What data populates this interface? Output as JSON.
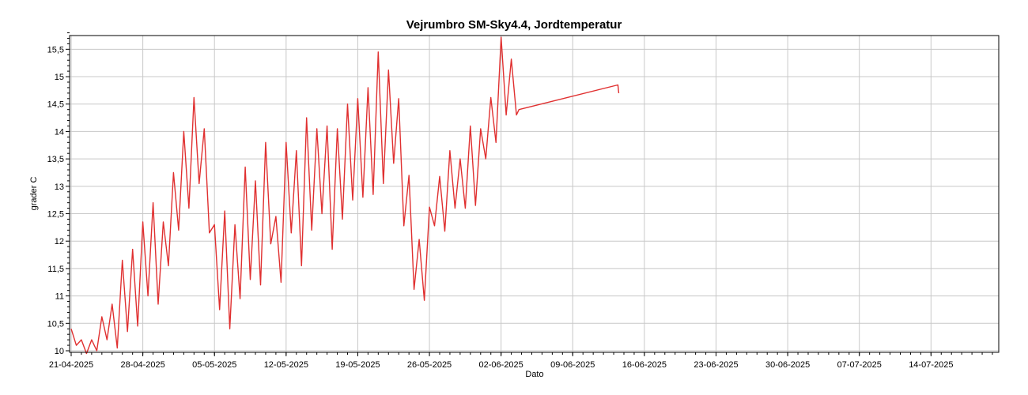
{
  "chart_data": {
    "type": "line",
    "title": "Vejrumbro SM-Sky4.4, Jordtemperatur",
    "xlabel": "Dato",
    "ylabel": "grader C",
    "x_tick_labels": [
      "21-04-2025",
      "28-04-2025",
      "05-05-2025",
      "12-05-2025",
      "19-05-2025",
      "26-05-2025",
      "02-06-2025",
      "09-06-2025",
      "16-06-2025",
      "23-06-2025",
      "30-06-2025",
      "07-07-2025",
      "14-07-2025"
    ],
    "y_tick_labels": [
      "10",
      "10,5",
      "11",
      "11,5",
      "12",
      "12,5",
      "13",
      "13,5",
      "14",
      "14,5",
      "15",
      "15,5"
    ],
    "xlim": [
      "2025-04-21",
      "2025-07-20"
    ],
    "ylim": [
      10,
      15.75
    ],
    "grid": true,
    "series": [
      {
        "color": "#e03030",
        "points": [
          [
            "2025-04-21 00:00",
            10.4
          ],
          [
            "2025-04-21 12:00",
            10.1
          ],
          [
            "2025-04-22 00:00",
            10.2
          ],
          [
            "2025-04-22 12:00",
            9.95
          ],
          [
            "2025-04-23 00:00",
            10.2
          ],
          [
            "2025-04-23 12:00",
            10.0
          ],
          [
            "2025-04-24 00:00",
            10.62
          ],
          [
            "2025-04-24 12:00",
            10.2
          ],
          [
            "2025-04-25 00:00",
            10.85
          ],
          [
            "2025-04-25 12:00",
            10.05
          ],
          [
            "2025-04-26 00:00",
            11.65
          ],
          [
            "2025-04-26 12:00",
            10.35
          ],
          [
            "2025-04-27 00:00",
            11.85
          ],
          [
            "2025-04-27 12:00",
            10.45
          ],
          [
            "2025-04-28 00:00",
            12.35
          ],
          [
            "2025-04-28 12:00",
            11.0
          ],
          [
            "2025-04-29 00:00",
            12.7
          ],
          [
            "2025-04-29 12:00",
            10.85
          ],
          [
            "2025-04-30 00:00",
            12.35
          ],
          [
            "2025-04-30 12:00",
            11.55
          ],
          [
            "2025-05-01 00:00",
            13.25
          ],
          [
            "2025-05-01 12:00",
            12.2
          ],
          [
            "2025-05-02 00:00",
            14.0
          ],
          [
            "2025-05-02 12:00",
            12.6
          ],
          [
            "2025-05-03 00:00",
            14.62
          ],
          [
            "2025-05-03 12:00",
            13.05
          ],
          [
            "2025-05-04 00:00",
            14.05
          ],
          [
            "2025-05-04 12:00",
            12.15
          ],
          [
            "2025-05-05 00:00",
            12.3
          ],
          [
            "2025-05-05 12:00",
            10.75
          ],
          [
            "2025-05-06 00:00",
            12.55
          ],
          [
            "2025-05-06 12:00",
            10.4
          ],
          [
            "2025-05-07 00:00",
            12.3
          ],
          [
            "2025-05-07 12:00",
            10.95
          ],
          [
            "2025-05-08 00:00",
            13.35
          ],
          [
            "2025-05-08 12:00",
            11.3
          ],
          [
            "2025-05-09 00:00",
            13.1
          ],
          [
            "2025-05-09 12:00",
            11.2
          ],
          [
            "2025-05-10 00:00",
            13.8
          ],
          [
            "2025-05-10 12:00",
            11.95
          ],
          [
            "2025-05-11 00:00",
            12.45
          ],
          [
            "2025-05-11 12:00",
            11.25
          ],
          [
            "2025-05-12 00:00",
            13.8
          ],
          [
            "2025-05-12 12:00",
            12.15
          ],
          [
            "2025-05-13 00:00",
            13.65
          ],
          [
            "2025-05-13 12:00",
            11.55
          ],
          [
            "2025-05-14 00:00",
            14.25
          ],
          [
            "2025-05-14 12:00",
            12.2
          ],
          [
            "2025-05-15 00:00",
            14.05
          ],
          [
            "2025-05-15 12:00",
            12.5
          ],
          [
            "2025-05-16 00:00",
            14.1
          ],
          [
            "2025-05-16 12:00",
            11.85
          ],
          [
            "2025-05-17 00:00",
            14.05
          ],
          [
            "2025-05-17 12:00",
            12.4
          ],
          [
            "2025-05-18 00:00",
            14.5
          ],
          [
            "2025-05-18 12:00",
            12.75
          ],
          [
            "2025-05-19 00:00",
            14.6
          ],
          [
            "2025-05-19 12:00",
            12.8
          ],
          [
            "2025-05-20 00:00",
            14.8
          ],
          [
            "2025-05-20 12:00",
            12.85
          ],
          [
            "2025-05-21 00:00",
            15.45
          ],
          [
            "2025-05-21 12:00",
            13.05
          ],
          [
            "2025-05-22 00:00",
            15.12
          ],
          [
            "2025-05-22 12:00",
            13.42
          ],
          [
            "2025-05-23 00:00",
            14.6
          ],
          [
            "2025-05-23 12:00",
            12.28
          ],
          [
            "2025-05-24 00:00",
            13.2
          ],
          [
            "2025-05-24 12:00",
            11.12
          ],
          [
            "2025-05-25 00:00",
            12.03
          ],
          [
            "2025-05-25 12:00",
            10.92
          ],
          [
            "2025-05-26 00:00",
            12.62
          ],
          [
            "2025-05-26 12:00",
            12.28
          ],
          [
            "2025-05-27 00:00",
            13.18
          ],
          [
            "2025-05-27 12:00",
            12.18
          ],
          [
            "2025-05-28 00:00",
            13.65
          ],
          [
            "2025-05-28 12:00",
            12.6
          ],
          [
            "2025-05-29 00:00",
            13.5
          ],
          [
            "2025-05-29 12:00",
            12.6
          ],
          [
            "2025-05-30 00:00",
            14.1
          ],
          [
            "2025-05-30 12:00",
            12.65
          ],
          [
            "2025-05-31 00:00",
            14.05
          ],
          [
            "2025-05-31 12:00",
            13.5
          ],
          [
            "2025-06-01 00:00",
            14.62
          ],
          [
            "2025-06-01 12:00",
            13.8
          ],
          [
            "2025-06-02 00:00",
            15.72
          ],
          [
            "2025-06-02 12:00",
            14.3
          ],
          [
            "2025-06-03 00:00",
            15.32
          ],
          [
            "2025-06-03 12:00",
            14.3
          ],
          [
            "2025-06-03 18:00",
            14.4
          ],
          [
            "2025-06-13 10:00",
            14.85
          ],
          [
            "2025-06-13 12:00",
            14.7
          ]
        ]
      }
    ]
  }
}
